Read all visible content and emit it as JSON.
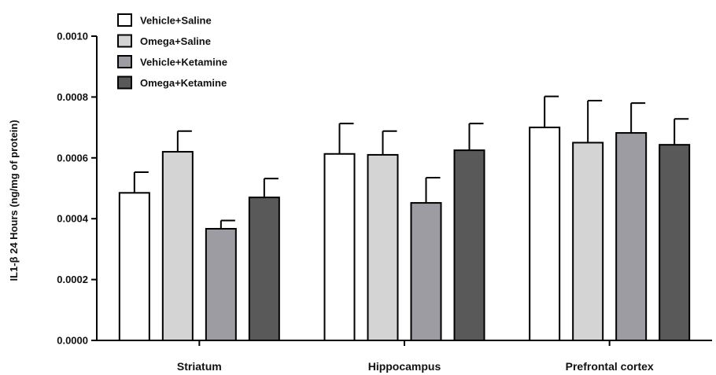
{
  "chart_data": {
    "type": "bar",
    "ylabel": "IL1-β 24 Hours (ng/mg of protein)",
    "ylim": [
      0,
      0.001
    ],
    "yticks": [
      "0.0000",
      "0.0002",
      "0.0004",
      "0.0006",
      "0.0008",
      "0.0010"
    ],
    "categories": [
      "Striatum",
      "Hippocampus",
      "Prefrontal cortex"
    ],
    "legend_position": "top-left",
    "series": [
      {
        "name": "Vehicle+Saline",
        "color": "#ffffff",
        "values": [
          0.000485,
          0.000613,
          0.0007
        ],
        "errors": [
          6.8e-05,
          0.0001,
          0.000102
        ]
      },
      {
        "name": "Omega+Saline",
        "color": "#d4d4d4",
        "values": [
          0.00062,
          0.00061,
          0.00065
        ],
        "errors": [
          6.8e-05,
          7.8e-05,
          0.000138
        ]
      },
      {
        "name": "Vehicle+Ketamine",
        "color": "#9c9ca2",
        "values": [
          0.000367,
          0.000452,
          0.000682
        ],
        "errors": [
          2.7e-05,
          8.3e-05,
          9.8e-05
        ]
      },
      {
        "name": "Omega+Ketamine",
        "color": "#595959",
        "values": [
          0.00047,
          0.000625,
          0.000643
        ],
        "errors": [
          6.2e-05,
          8.8e-05,
          8.5e-05
        ]
      }
    ]
  }
}
